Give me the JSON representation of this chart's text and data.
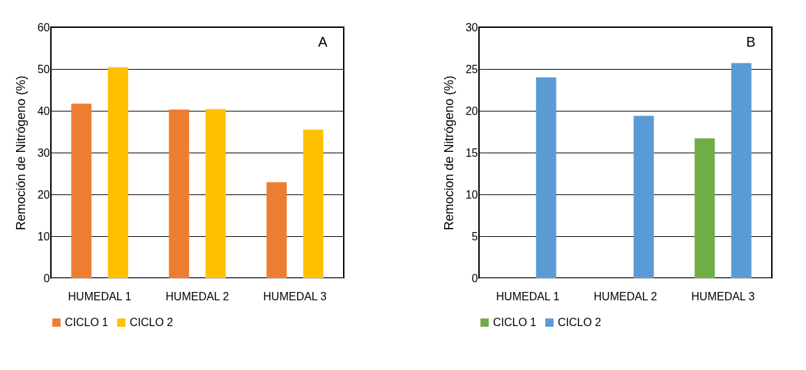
{
  "chart_data": [
    {
      "type": "bar",
      "categories": [
        "HUMEDAL 1",
        "HUMEDAL 2",
        "HUMEDAL 3"
      ],
      "ylabel": "Remoción de Nitrógeno (%)",
      "ylim": [
        0,
        60
      ],
      "yticks": [
        0,
        10,
        20,
        30,
        40,
        50,
        60
      ],
      "grid": "y",
      "legend": "bottom",
      "annotations": [
        "A"
      ],
      "series": [
        {
          "name": "CICLO 1",
          "color": "#ed7d31",
          "values": [
            41.7,
            40.3,
            22.9
          ]
        },
        {
          "name": "CICLO 2",
          "color": "#ffc000",
          "values": [
            50.4,
            40.4,
            35.5
          ]
        }
      ]
    },
    {
      "type": "bar",
      "categories": [
        "HUMEDAL 1",
        "HUMEDAL 2",
        "HUMEDAL 3"
      ],
      "ylabel": "Remocion de Nitrógeno (%)",
      "ylim": [
        0,
        30
      ],
      "yticks": [
        0,
        5,
        10,
        15,
        20,
        25,
        30
      ],
      "grid": "y",
      "legend": "bottom",
      "annotations": [
        "B"
      ],
      "series": [
        {
          "name": "CICLO 1",
          "color": "#70ad47",
          "values": [
            null,
            null,
            16.7
          ]
        },
        {
          "name": "CICLO 2",
          "color": "#5b9bd5",
          "values": [
            24.0,
            19.4,
            25.7
          ]
        }
      ]
    }
  ]
}
